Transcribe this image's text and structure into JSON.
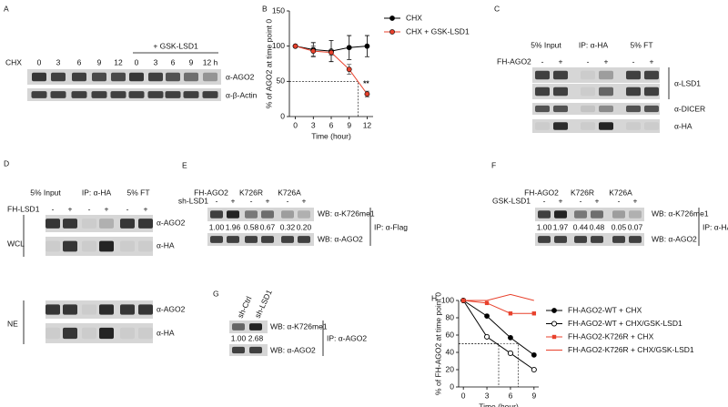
{
  "panels": {
    "A": {
      "letter": "A",
      "treatment_label": "+ GSK-LSD1",
      "row_label": "CHX",
      "lanes": [
        "0",
        "3",
        "6",
        "9",
        "12",
        "0",
        "3",
        "6",
        "9",
        "12 h"
      ],
      "blots": [
        "α-AGO2",
        "α-β-Actin"
      ]
    },
    "C": {
      "letter": "C",
      "groups": [
        "5% Input",
        "IP: α-HA",
        "5% FT"
      ],
      "row_label": "FH-AGO2",
      "lanes": [
        "-",
        "+",
        "-",
        "+",
        "-",
        "+"
      ],
      "blots": [
        "α-LSD1",
        "α-DICER",
        "α-HA"
      ]
    },
    "D": {
      "letter": "D",
      "groups": [
        "5% Input",
        "IP: α-HA",
        "5% FT"
      ],
      "row_label": "FH-LSD1",
      "lanes": [
        "-",
        "+",
        "-",
        "+",
        "-",
        "+"
      ],
      "fractions": [
        "WCL",
        "NE"
      ],
      "blots": [
        "α-AGO2",
        "α-HA",
        "α-AGO2",
        "α-HA"
      ]
    },
    "E": {
      "letter": "E",
      "groups": [
        "FH-AGO2",
        "K726R",
        "K726A"
      ],
      "row_label": "sh-LSD1",
      "lanes": [
        "-",
        "+",
        "-",
        "+",
        "-",
        "+"
      ],
      "quantification": [
        "1.00",
        "1.96",
        "0.58",
        "0.67",
        "0.32",
        "0.20"
      ],
      "blots": [
        "WB: α-K726me1",
        "WB: α-AGO2"
      ],
      "ip": "IP: α-Flag"
    },
    "F": {
      "letter": "F",
      "groups": [
        "FH-AGO2",
        "K726R",
        "K726A"
      ],
      "row_label": "GSK-LSD1",
      "lanes": [
        "-",
        "+",
        "-",
        "+",
        "-",
        "+"
      ],
      "quantification": [
        "1.00",
        "1.97",
        "0.44",
        "0.48",
        "0.05",
        "0.07"
      ],
      "blots": [
        "WB: α-K726me1",
        "WB: α-AGO2"
      ],
      "ip": "IP: α-HA"
    },
    "G": {
      "letter": "G",
      "lanes": [
        "sh-Ctrl",
        "sh-LSD1"
      ],
      "quantification": [
        "1.00",
        "2.68"
      ],
      "blots": [
        "WB: α-K726me1",
        "WB: α-AGO2"
      ],
      "ip": "IP: α-AGO2"
    }
  },
  "chart_data": [
    {
      "type": "line",
      "panel": "B",
      "x_label": "Time (hour)",
      "y_label": "% of AGO2 at time point 0",
      "x": [
        0,
        3,
        6,
        9,
        12
      ],
      "xlim": [
        -1,
        13
      ],
      "xticks": [
        0,
        3,
        6,
        9,
        12
      ],
      "ylim": [
        0,
        150
      ],
      "yticks": [
        0,
        50,
        100,
        150
      ],
      "legend": "right",
      "annotation": "**",
      "reference_lines": [
        {
          "y": 50,
          "x": 10.5
        }
      ],
      "series": [
        {
          "name": "CHX",
          "color": "#000000",
          "marker": "circle",
          "values": [
            100,
            95,
            93,
            98,
            100
          ],
          "errors": [
            0,
            10,
            15,
            17,
            15
          ]
        },
        {
          "name": "CHX + GSK-LSD1",
          "color": "#e8412c",
          "marker": "circle",
          "values": [
            100,
            93,
            91,
            67,
            32
          ],
          "errors": [
            0,
            7,
            4,
            7,
            4
          ]
        }
      ]
    },
    {
      "type": "line",
      "panel": "H",
      "x_label": "Time (hour)",
      "y_label": "% of FH-AGO2 at time point 0",
      "x": [
        0,
        3,
        6,
        9
      ],
      "xlim": [
        -0.6,
        9.6
      ],
      "xticks": [
        0,
        3,
        6,
        9
      ],
      "ylim": [
        0,
        100
      ],
      "yticks": [
        0,
        20,
        40,
        60,
        80,
        100
      ],
      "legend": "right",
      "reference_lines": [
        {
          "y": 50,
          "x": 4.5
        },
        {
          "y": 50,
          "x": 7
        }
      ],
      "series": [
        {
          "name": "FH-AGO2-WT + CHX",
          "color": "#000000",
          "marker": "circle",
          "values": [
            100,
            82,
            57,
            37
          ]
        },
        {
          "name": "FH-AGO2-WT + CHX/GSK-LSD1",
          "color": "#000000",
          "marker": "open-circle",
          "values": [
            100,
            58,
            39,
            20
          ]
        },
        {
          "name": "FH-AGO2-K726R + CHX",
          "color": "#e8412c",
          "marker": "square",
          "values": [
            100,
            97,
            85,
            85
          ]
        },
        {
          "name": "FH-AGO2-K726R + CHX/GSK-LSD1",
          "color": "#e8412c",
          "marker": "none",
          "values": [
            100,
            100,
            107,
            100
          ]
        }
      ]
    }
  ]
}
